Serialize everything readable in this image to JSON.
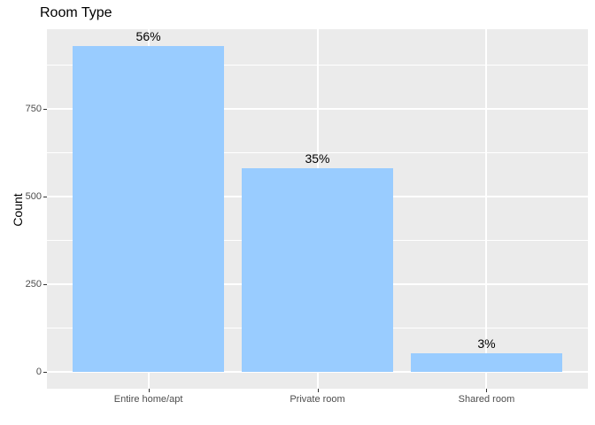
{
  "chart_data": {
    "type": "bar",
    "title": "Room Type",
    "xlabel": "",
    "ylabel": "Count",
    "categories": [
      "Entire home/apt",
      "Private room",
      "Shared room"
    ],
    "values": [
      929,
      581,
      55
    ],
    "bar_labels": [
      "56%",
      "35%",
      "3%"
    ],
    "yticks": [
      0,
      250,
      500,
      750
    ],
    "yticks_minor": [
      125,
      375,
      625,
      875
    ],
    "ylim": [
      -47,
      977
    ],
    "grid": "on",
    "legend": "none",
    "colors": {
      "page_background": "#FFFFFF",
      "panel_background": "#EBEBEB",
      "gridline": "#FFFFFF",
      "bar_fill": "#99CCFF",
      "axis_text": "#4D4D4D",
      "tick_mark": "#333333",
      "title_text": "#000000",
      "label_text": "#000000"
    }
  }
}
